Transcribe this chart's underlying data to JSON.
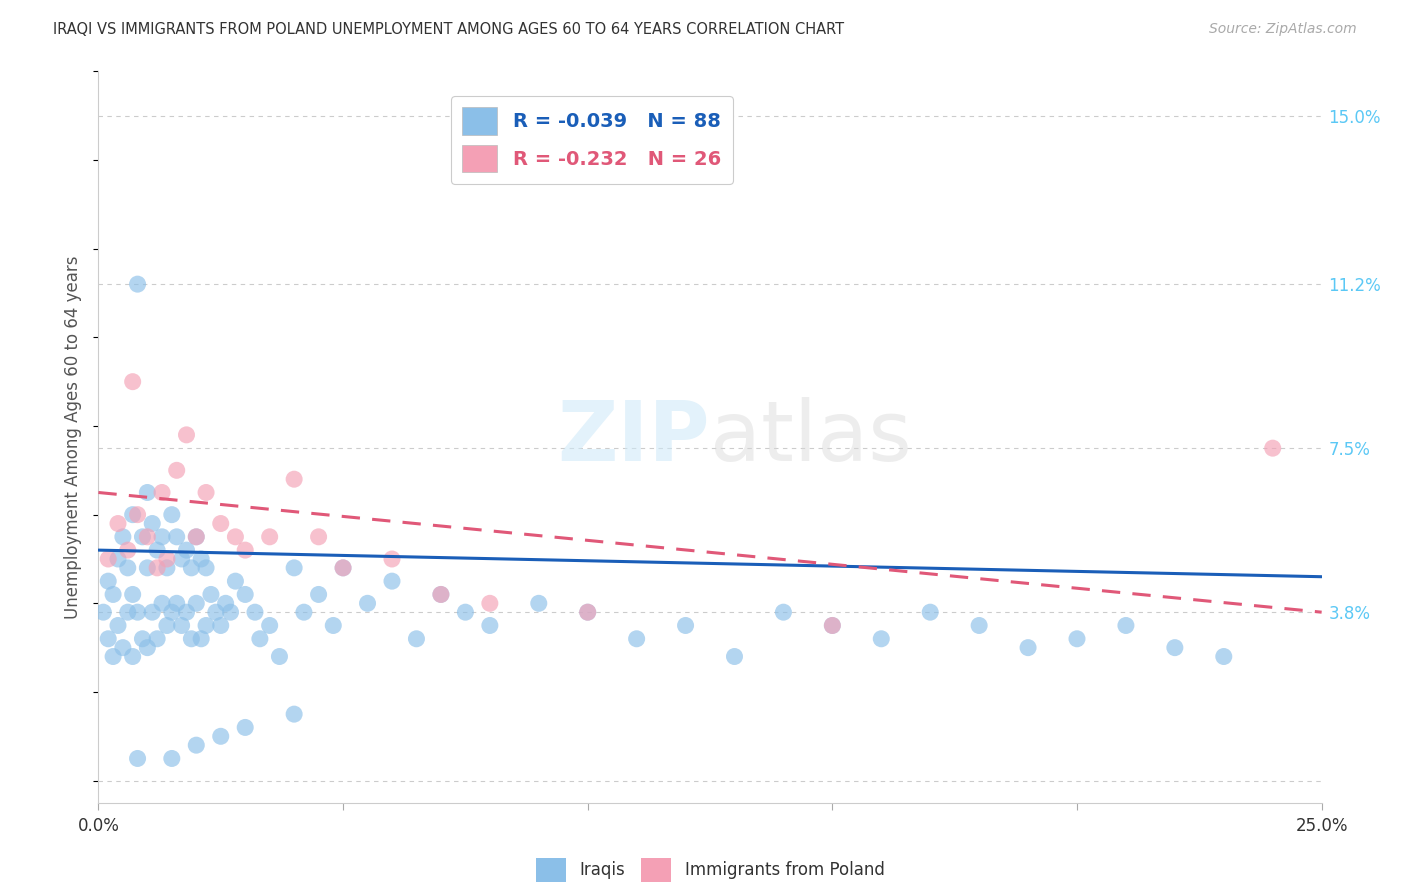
{
  "title": "IRAQI VS IMMIGRANTS FROM POLAND UNEMPLOYMENT AMONG AGES 60 TO 64 YEARS CORRELATION CHART",
  "source": "Source: ZipAtlas.com",
  "ylabel": "Unemployment Among Ages 60 to 64 years",
  "xlim": [
    0.0,
    0.25
  ],
  "ylim": [
    -0.005,
    0.16
  ],
  "right_ytick_labels": [
    "15.0%",
    "11.2%",
    "7.5%",
    "3.8%"
  ],
  "right_ytick_values": [
    0.15,
    0.112,
    0.075,
    0.038
  ],
  "iraqis_color": "#8bbfe8",
  "poland_color": "#f4a0b5",
  "iraqis_line_color": "#1a5eb8",
  "poland_line_color": "#e05878",
  "iraqis_R": -0.039,
  "iraqis_N": 88,
  "poland_R": -0.232,
  "poland_N": 26,
  "iraq_line_start_y": 0.052,
  "iraq_line_end_y": 0.046,
  "poland_line_start_y": 0.065,
  "poland_line_end_y": 0.038,
  "iraqis_x": [
    0.001,
    0.002,
    0.002,
    0.003,
    0.003,
    0.004,
    0.004,
    0.005,
    0.005,
    0.006,
    0.006,
    0.007,
    0.007,
    0.007,
    0.008,
    0.008,
    0.009,
    0.009,
    0.01,
    0.01,
    0.01,
    0.011,
    0.011,
    0.012,
    0.012,
    0.013,
    0.013,
    0.014,
    0.014,
    0.015,
    0.015,
    0.016,
    0.016,
    0.017,
    0.017,
    0.018,
    0.018,
    0.019,
    0.019,
    0.02,
    0.02,
    0.021,
    0.021,
    0.022,
    0.022,
    0.023,
    0.024,
    0.025,
    0.026,
    0.027,
    0.028,
    0.03,
    0.032,
    0.033,
    0.035,
    0.037,
    0.04,
    0.042,
    0.045,
    0.048,
    0.05,
    0.055,
    0.06,
    0.065,
    0.07,
    0.075,
    0.08,
    0.09,
    0.1,
    0.11,
    0.12,
    0.13,
    0.14,
    0.15,
    0.16,
    0.17,
    0.18,
    0.19,
    0.2,
    0.21,
    0.22,
    0.23,
    0.008,
    0.015,
    0.02,
    0.025,
    0.03,
    0.04
  ],
  "iraqis_y": [
    0.038,
    0.045,
    0.032,
    0.042,
    0.028,
    0.05,
    0.035,
    0.055,
    0.03,
    0.048,
    0.038,
    0.06,
    0.042,
    0.028,
    0.112,
    0.038,
    0.055,
    0.032,
    0.065,
    0.048,
    0.03,
    0.058,
    0.038,
    0.052,
    0.032,
    0.055,
    0.04,
    0.048,
    0.035,
    0.06,
    0.038,
    0.055,
    0.04,
    0.05,
    0.035,
    0.052,
    0.038,
    0.048,
    0.032,
    0.055,
    0.04,
    0.05,
    0.032,
    0.048,
    0.035,
    0.042,
    0.038,
    0.035,
    0.04,
    0.038,
    0.045,
    0.042,
    0.038,
    0.032,
    0.035,
    0.028,
    0.048,
    0.038,
    0.042,
    0.035,
    0.048,
    0.04,
    0.045,
    0.032,
    0.042,
    0.038,
    0.035,
    0.04,
    0.038,
    0.032,
    0.035,
    0.028,
    0.038,
    0.035,
    0.032,
    0.038,
    0.035,
    0.03,
    0.032,
    0.035,
    0.03,
    0.028,
    0.005,
    0.005,
    0.008,
    0.01,
    0.012,
    0.015
  ],
  "poland_x": [
    0.002,
    0.004,
    0.006,
    0.007,
    0.008,
    0.01,
    0.012,
    0.013,
    0.014,
    0.016,
    0.018,
    0.02,
    0.022,
    0.025,
    0.028,
    0.03,
    0.035,
    0.04,
    0.045,
    0.05,
    0.06,
    0.07,
    0.08,
    0.1,
    0.15,
    0.24
  ],
  "poland_y": [
    0.05,
    0.058,
    0.052,
    0.09,
    0.06,
    0.055,
    0.048,
    0.065,
    0.05,
    0.07,
    0.078,
    0.055,
    0.065,
    0.058,
    0.055,
    0.052,
    0.055,
    0.068,
    0.055,
    0.048,
    0.05,
    0.042,
    0.04,
    0.038,
    0.035,
    0.075
  ]
}
